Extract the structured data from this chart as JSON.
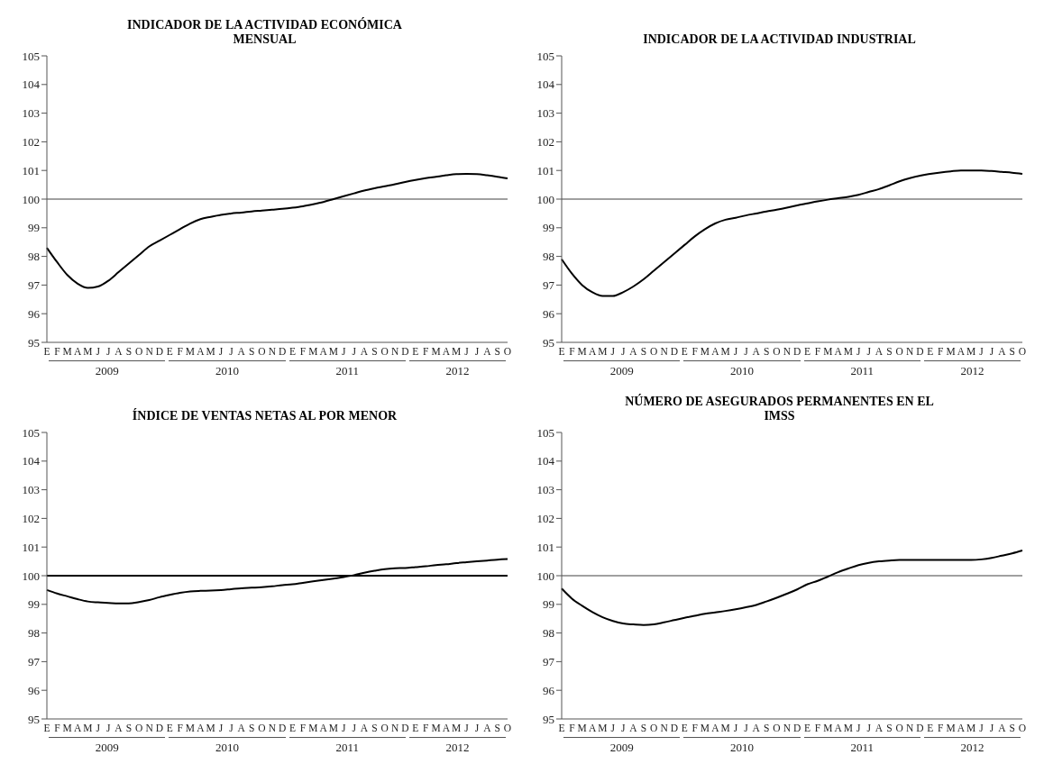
{
  "chart_data": [
    {
      "type": "line",
      "title": "INDICADOR DE LA ACTIVIDAD ECONÓMICA MENSUAL",
      "categories": [
        "E",
        "F",
        "M",
        "A",
        "M",
        "J",
        "J",
        "A",
        "S",
        "O",
        "N",
        "D",
        "E",
        "F",
        "M",
        "A",
        "M",
        "J",
        "J",
        "A",
        "S",
        "O",
        "N",
        "D",
        "E",
        "F",
        "M",
        "A",
        "M",
        "J",
        "J",
        "A",
        "S",
        "O",
        "N",
        "D",
        "E",
        "F",
        "M",
        "A",
        "M",
        "J",
        "J",
        "A",
        "S",
        "O"
      ],
      "series": [
        {
          "color": "#000000",
          "values": [
            98.3,
            97.8,
            97.35,
            97.05,
            96.9,
            96.95,
            97.15,
            97.45,
            97.75,
            98.05,
            98.35,
            98.55,
            98.75,
            98.95,
            99.15,
            99.3,
            99.38,
            99.45,
            99.5,
            99.53,
            99.57,
            99.6,
            99.63,
            99.66,
            99.7,
            99.75,
            99.82,
            99.9,
            100.0,
            100.1,
            100.2,
            100.3,
            100.38,
            100.45,
            100.52,
            100.6,
            100.67,
            100.73,
            100.78,
            100.83,
            100.87,
            100.88,
            100.87,
            100.83,
            100.78,
            100.72
          ]
        }
      ],
      "ylim": [
        95,
        105
      ],
      "yticks": [
        95,
        96,
        97,
        98,
        99,
        100,
        101,
        102,
        103,
        104,
        105
      ],
      "ref_lines": [
        {
          "axis": "y",
          "value": 100,
          "color": "#808080"
        }
      ],
      "annotations": [
        "2009",
        "2010",
        "2011",
        "2012"
      ]
    },
    {
      "type": "line",
      "title": "INDICADOR DE LA ACTIVIDAD INDUSTRIAL",
      "categories": [
        "E",
        "F",
        "M",
        "A",
        "M",
        "J",
        "J",
        "A",
        "S",
        "O",
        "N",
        "D",
        "E",
        "F",
        "M",
        "A",
        "M",
        "J",
        "J",
        "A",
        "S",
        "O",
        "N",
        "D",
        "E",
        "F",
        "M",
        "A",
        "M",
        "J",
        "J",
        "A",
        "S",
        "O",
        "N",
        "D",
        "E",
        "F",
        "M",
        "A",
        "M",
        "J",
        "J",
        "A",
        "S",
        "O"
      ],
      "series": [
        {
          "color": "#000000",
          "values": [
            97.9,
            97.4,
            97.0,
            96.75,
            96.62,
            96.62,
            96.75,
            96.95,
            97.2,
            97.5,
            97.8,
            98.1,
            98.4,
            98.7,
            98.95,
            99.15,
            99.28,
            99.35,
            99.43,
            99.5,
            99.57,
            99.63,
            99.7,
            99.78,
            99.85,
            99.92,
            99.98,
            100.03,
            100.08,
            100.15,
            100.25,
            100.35,
            100.48,
            100.62,
            100.73,
            100.82,
            100.88,
            100.93,
            100.97,
            101.0,
            101.0,
            101.0,
            100.98,
            100.95,
            100.92,
            100.88
          ]
        }
      ],
      "ylim": [
        95,
        105
      ],
      "yticks": [
        95,
        96,
        97,
        98,
        99,
        100,
        101,
        102,
        103,
        104,
        105
      ],
      "ref_lines": [
        {
          "axis": "y",
          "value": 100,
          "color": "#808080"
        }
      ],
      "annotations": [
        "2009",
        "2010",
        "2011",
        "2012"
      ]
    },
    {
      "type": "line",
      "title": "ÍNDICE DE VENTAS NETAS AL POR MENOR",
      "categories": [
        "E",
        "F",
        "M",
        "A",
        "M",
        "J",
        "J",
        "A",
        "S",
        "O",
        "N",
        "D",
        "E",
        "F",
        "M",
        "A",
        "M",
        "J",
        "J",
        "A",
        "S",
        "O",
        "N",
        "D",
        "E",
        "F",
        "M",
        "A",
        "M",
        "J",
        "J",
        "A",
        "S",
        "O",
        "N",
        "D",
        "E",
        "F",
        "M",
        "A",
        "M",
        "J",
        "J",
        "A",
        "S",
        "O"
      ],
      "series": [
        {
          "color": "#000000",
          "values": [
            99.5,
            99.38,
            99.28,
            99.18,
            99.1,
            99.07,
            99.05,
            99.03,
            99.03,
            99.08,
            99.15,
            99.25,
            99.33,
            99.4,
            99.45,
            99.47,
            99.48,
            99.5,
            99.53,
            99.56,
            99.58,
            99.6,
            99.63,
            99.67,
            99.7,
            99.75,
            99.8,
            99.85,
            99.9,
            99.95,
            100.02,
            100.1,
            100.17,
            100.23,
            100.26,
            100.27,
            100.3,
            100.33,
            100.37,
            100.4,
            100.44,
            100.47,
            100.5,
            100.53,
            100.56,
            100.58
          ]
        }
      ],
      "ylim": [
        95,
        105
      ],
      "yticks": [
        95,
        96,
        97,
        98,
        99,
        100,
        101,
        102,
        103,
        104,
        105
      ],
      "ref_lines": [
        {
          "axis": "y",
          "value": 100,
          "color": "#000000"
        }
      ],
      "annotations": [
        "2009",
        "2010",
        "2011",
        "2012"
      ]
    },
    {
      "type": "line",
      "title": "NÚMERO DE ASEGURADOS PERMANENTES EN EL IMSS",
      "categories": [
        "E",
        "F",
        "M",
        "A",
        "M",
        "J",
        "J",
        "A",
        "S",
        "O",
        "N",
        "D",
        "E",
        "F",
        "M",
        "A",
        "M",
        "J",
        "J",
        "A",
        "S",
        "O",
        "N",
        "D",
        "E",
        "F",
        "M",
        "A",
        "M",
        "J",
        "J",
        "A",
        "S",
        "O",
        "N",
        "D",
        "E",
        "F",
        "M",
        "A",
        "M",
        "J",
        "J",
        "A",
        "S",
        "O"
      ],
      "series": [
        {
          "color": "#000000",
          "values": [
            99.55,
            99.2,
            98.95,
            98.73,
            98.55,
            98.42,
            98.33,
            98.3,
            98.28,
            98.3,
            98.37,
            98.45,
            98.53,
            98.6,
            98.67,
            98.72,
            98.77,
            98.83,
            98.9,
            98.98,
            99.1,
            99.23,
            99.37,
            99.52,
            99.7,
            99.82,
            99.97,
            100.12,
            100.25,
            100.37,
            100.45,
            100.5,
            100.53,
            100.55,
            100.55,
            100.55,
            100.55,
            100.55,
            100.55,
            100.55,
            100.55,
            100.57,
            100.62,
            100.7,
            100.78,
            100.88
          ]
        }
      ],
      "ylim": [
        95,
        105
      ],
      "yticks": [
        95,
        96,
        97,
        98,
        99,
        100,
        101,
        102,
        103,
        104,
        105
      ],
      "ref_lines": [
        {
          "axis": "y",
          "value": 100,
          "color": "#808080"
        }
      ],
      "annotations": [
        "2009",
        "2010",
        "2011",
        "2012"
      ]
    }
  ]
}
